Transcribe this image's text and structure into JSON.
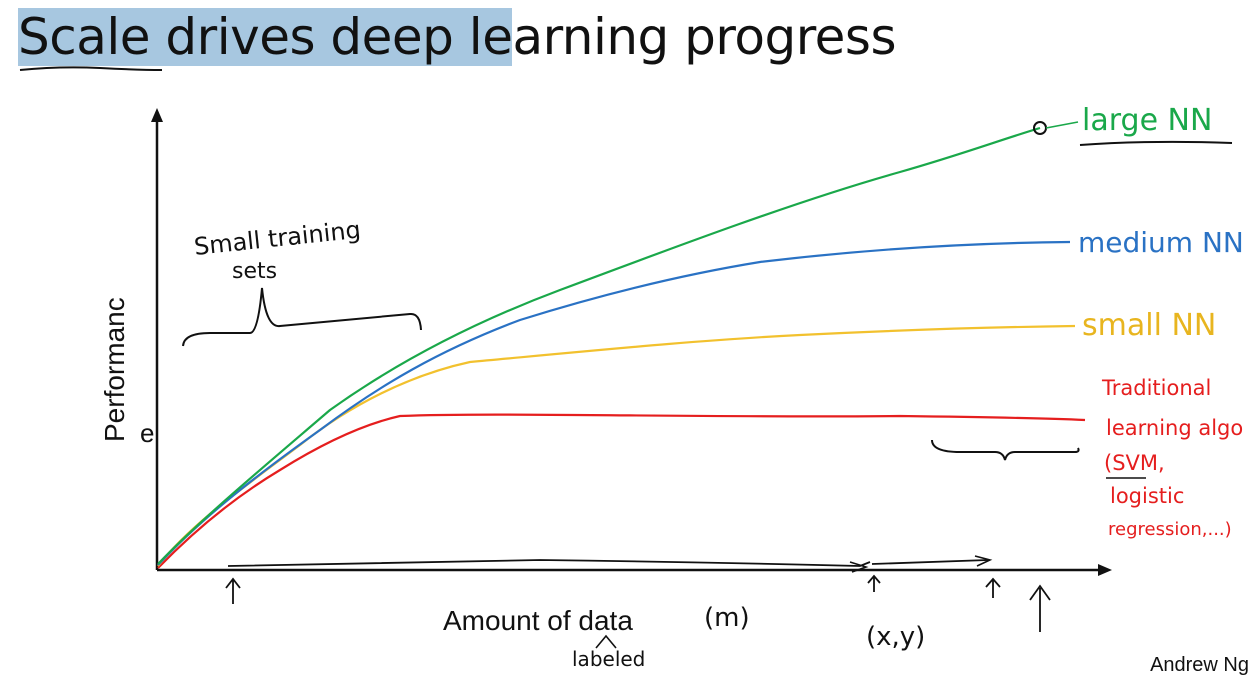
{
  "slide": {
    "title_part1": "Scale drives ",
    "title_part2": "deep le",
    "title_part3": "arning progress",
    "credit": "Andrew Ng"
  },
  "axes": {
    "ylabel": "Performanc",
    "ylabel_extra": "e",
    "xlabel": "Amount of data",
    "xlabel_m": "(m)",
    "xlabel_labeled": "labeled",
    "xy_note": "(x,y)"
  },
  "annotations": {
    "small_sets_1": "Small training",
    "small_sets_2": "sets"
  },
  "curves": [
    {
      "key": "large",
      "label": "large NN",
      "color": "#1aa84a"
    },
    {
      "key": "medium",
      "label": "medium NN",
      "color": "#2a72c4"
    },
    {
      "key": "small",
      "label": "small NN",
      "color": "#f2c12e"
    },
    {
      "key": "trad",
      "label_lines": [
        "Traditional",
        "learning algo",
        "(SVM,",
        "logistic",
        "regression,...)"
      ],
      "color": "#e51e1e"
    }
  ]
}
